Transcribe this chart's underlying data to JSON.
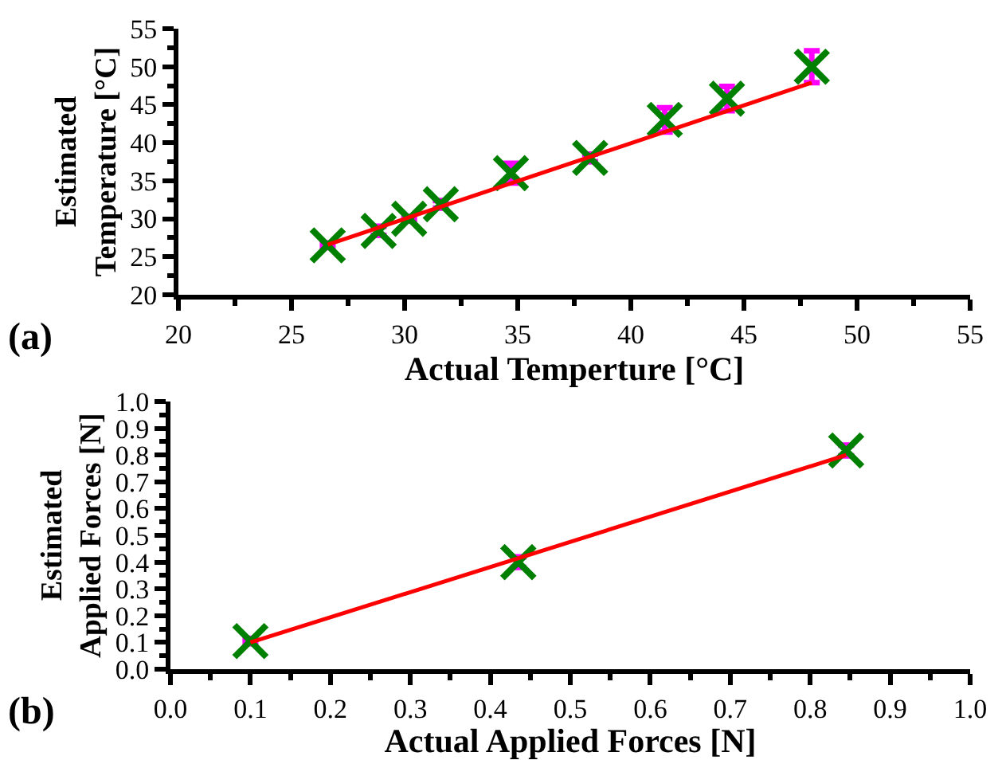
{
  "chart_data": [
    {
      "type": "scatter",
      "xlabel": "Actual Temperture [°C]",
      "ylabel": "Estimated\nTemperature [°C]",
      "annotations": [
        "(a)"
      ],
      "grid": false,
      "xlim": [
        20,
        55
      ],
      "xticks": [
        20,
        25,
        30,
        35,
        40,
        45,
        50,
        55
      ],
      "ylim": [
        20,
        55
      ],
      "yticks": [
        20,
        25,
        30,
        35,
        40,
        45,
        50,
        55
      ],
      "series": [
        {
          "color": "#008000",
          "marker": "cross",
          "x": [
            26.6,
            28.85,
            30.2,
            31.6,
            34.7,
            38.2,
            41.5,
            44.25,
            48.0
          ],
          "values": [
            26.5,
            28.4,
            30.0,
            31.9,
            36.0,
            38.0,
            43.0,
            45.8,
            50.0
          ],
          "errors": [
            0.3,
            0.6,
            0.3,
            0.5,
            1.3,
            0.5,
            1.6,
            1.6,
            2.1
          ]
        },
        {
          "type": "line",
          "marker": "none",
          "color": "#ff0000",
          "x": [
            26.6,
            48.0
          ],
          "values": [
            26.6,
            47.9
          ]
        }
      ]
    },
    {
      "type": "scatter",
      "xlabel": "Actual Applied Forces [N]",
      "ylabel": "Estimated\nApplied Forces [N]",
      "annotations": [
        "(b)"
      ],
      "grid": false,
      "xlim": [
        0.0,
        1.0
      ],
      "xticks": [
        {
          "value": 0,
          "label": "0.0"
        },
        0.1,
        0.2,
        0.3,
        0.4,
        0.5,
        0.6,
        0.7,
        0.8,
        0.9,
        {
          "value": 1,
          "label": "1.0"
        }
      ],
      "ylim": [
        0.0,
        1.0
      ],
      "yticks": [
        {
          "value": 0,
          "label": "0.0"
        },
        0.1,
        0.2,
        0.3,
        0.4,
        0.5,
        0.6,
        0.7,
        0.8,
        0.9,
        {
          "value": 1,
          "label": "1.0"
        }
      ],
      "series": [
        {
          "color": "#008000",
          "marker": "cross",
          "x": [
            0.1,
            0.435,
            0.845
          ],
          "values": [
            0.105,
            0.4,
            0.817
          ],
          "errors": [
            0.01,
            0.02,
            0.02
          ]
        },
        {
          "type": "line",
          "marker": "none",
          "color": "#ff0000",
          "x": [
            0.1,
            0.845
          ],
          "values": [
            0.1,
            0.8
          ]
        }
      ]
    }
  ]
}
